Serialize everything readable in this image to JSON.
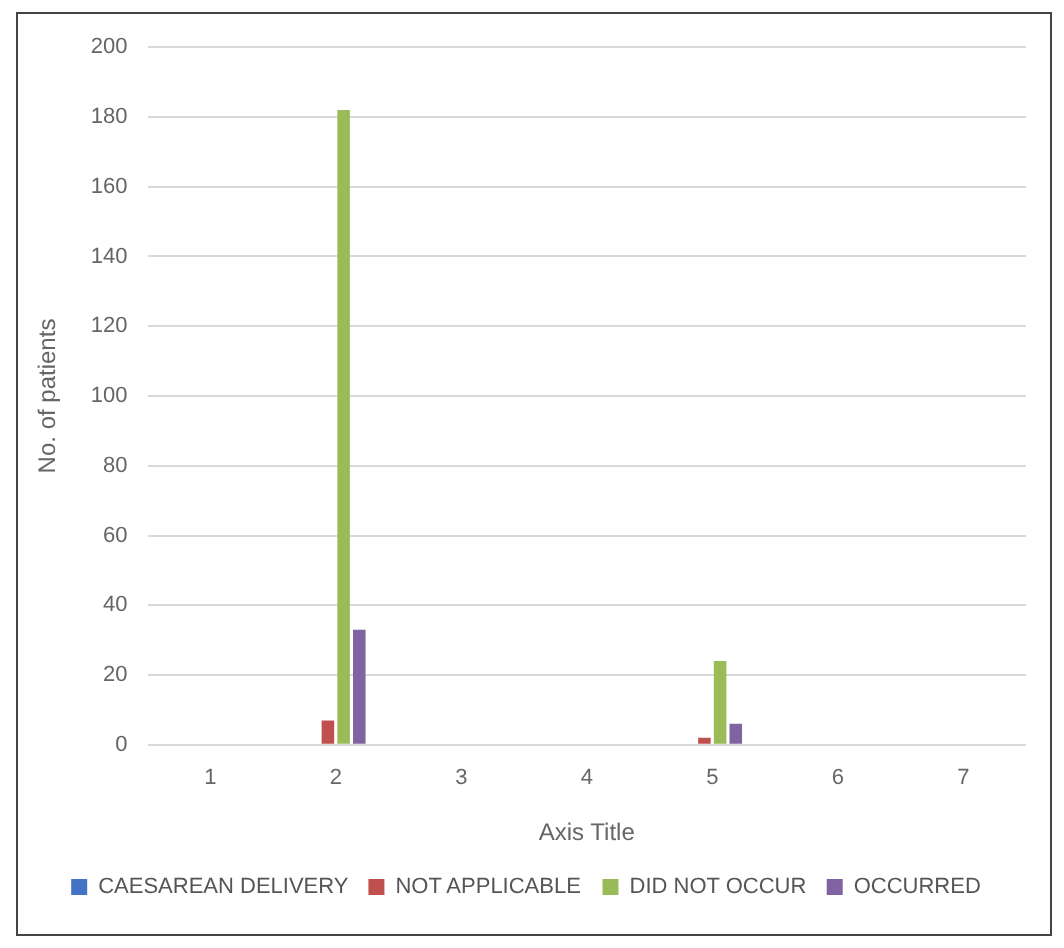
{
  "chart_data": {
    "type": "bar",
    "xlabel": "Axis Title",
    "ylabel": "No. of patients",
    "categories": [
      "1",
      "2",
      "3",
      "4",
      "5",
      "6",
      "7"
    ],
    "series": [
      {
        "name": "CAESAREAN DELIVERY",
        "color": "#4472c4",
        "values": [
          null,
          null,
          null,
          null,
          null,
          null,
          null
        ]
      },
      {
        "name": "NOT APPLICABLE",
        "color": "#c0504d",
        "values": [
          null,
          7,
          null,
          null,
          2,
          null,
          null
        ]
      },
      {
        "name": "DID NOT OCCUR",
        "color": "#9bbb59",
        "values": [
          null,
          182,
          null,
          null,
          24,
          null,
          null
        ]
      },
      {
        "name": "OCCURRED",
        "color": "#8064a2",
        "values": [
          null,
          33,
          null,
          null,
          6,
          null,
          null
        ]
      }
    ],
    "ylim": [
      0,
      200
    ],
    "yticks": [
      0,
      20,
      40,
      60,
      80,
      100,
      120,
      140,
      160,
      180,
      200
    ],
    "grid": "y",
    "legend": "bottom"
  }
}
